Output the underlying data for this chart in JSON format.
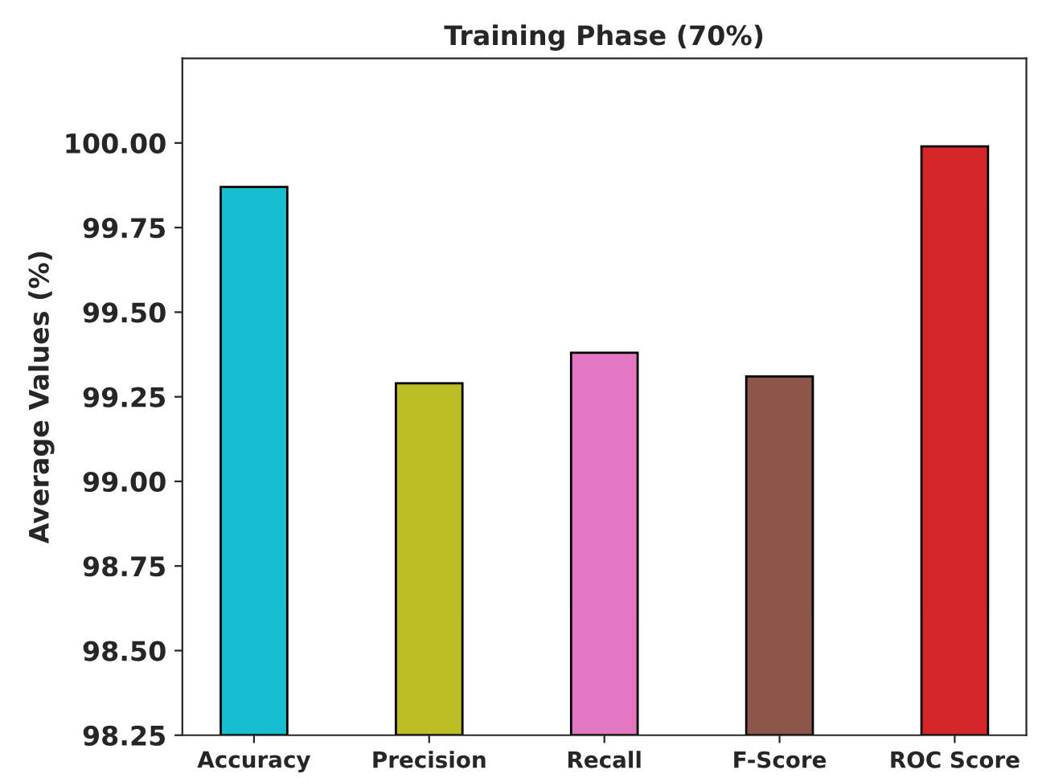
{
  "chart_data": {
    "type": "bar",
    "title": "Training Phase (70%)",
    "ylabel": "Average Values (%)",
    "categories": [
      "Accuracy",
      "Precision",
      "Recall",
      "F-Score",
      "ROC Score"
    ],
    "values": [
      99.87,
      99.29,
      99.38,
      99.31,
      99.99
    ],
    "colors": [
      "#17becf",
      "#bcbd22",
      "#e377c2",
      "#8c564b",
      "#d62728"
    ],
    "ylim": [
      98.25,
      100.25
    ],
    "yticks": [
      {
        "value": 98.25,
        "label": "98.25"
      },
      {
        "value": 98.5,
        "label": "98.50"
      },
      {
        "value": 98.75,
        "label": "98.75"
      },
      {
        "value": 99.0,
        "label": "99.00"
      },
      {
        "value": 99.25,
        "label": "99.25"
      },
      {
        "value": 99.5,
        "label": "99.50"
      },
      {
        "value": 99.75,
        "label": "99.75"
      },
      {
        "value": 100.0,
        "label": "100.00"
      }
    ],
    "grid": false
  }
}
